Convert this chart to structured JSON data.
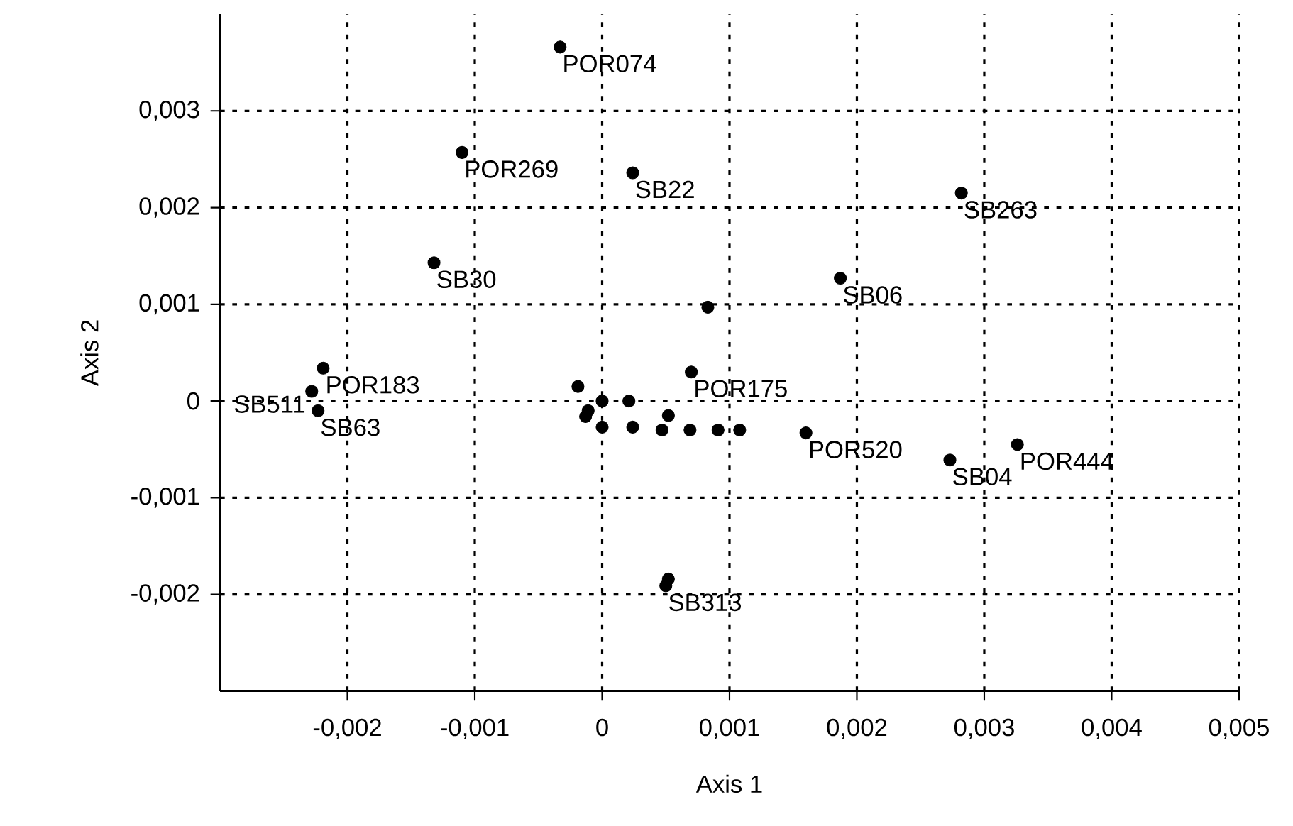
{
  "chart_data": {
    "type": "scatter",
    "xlabel": "Axis 1",
    "ylabel": "Axis 2",
    "xlim": [
      -0.003,
      0.005
    ],
    "ylim": [
      -0.003,
      0.004
    ],
    "xticks": [
      {
        "value": -0.002,
        "label": "-0,002"
      },
      {
        "value": -0.001,
        "label": "-0,001"
      },
      0,
      {
        "value": 0.001,
        "label": "0,001"
      },
      {
        "value": 0.002,
        "label": "0,002"
      },
      {
        "value": 0.003,
        "label": "0,003"
      },
      {
        "value": 0.004,
        "label": "0,004"
      },
      {
        "value": 0.005,
        "label": "0,005"
      }
    ],
    "yticks": [
      {
        "value": -0.002,
        "label": "-0,002"
      },
      {
        "value": -0.001,
        "label": "-0,001"
      },
      0,
      {
        "value": 0.001,
        "label": "0,001"
      },
      {
        "value": 0.002,
        "label": "0,002"
      },
      {
        "value": 0.003,
        "label": "0,003"
      }
    ],
    "grid": true,
    "marker": "circle",
    "series": [
      {
        "color": "#000000",
        "x": [
          -0.00033,
          -0.0011,
          0.00024,
          -0.00132,
          0.00282,
          0.00187,
          0.00083,
          0.0007,
          0.0016,
          0.00273,
          0.00326,
          -0.00219,
          -0.00228,
          -0.00223,
          0.00052,
          0.0005,
          -0.00019,
          -0.00011,
          -0.00013,
          0,
          0.00021,
          0,
          0.00024,
          0.00047,
          0.00069,
          0.00091,
          0.00108,
          0.00052
        ],
        "values": [
          0.00366,
          0.00257,
          0.00236,
          0.00143,
          0.00215,
          0.00127,
          0.00097,
          0.0003,
          -0.00033,
          -0.00061,
          -0.00045,
          0.00034,
          0.0001,
          -0.0001,
          -0.00184,
          -0.00191,
          0.00015,
          -0.0001,
          -0.00016,
          0,
          0,
          -0.00027,
          -0.00027,
          -0.0003,
          -0.0003,
          -0.0003,
          -0.0003,
          -0.00015
        ]
      }
    ],
    "annotations": [
      {
        "text": "POR074",
        "x": -0.00033,
        "y": 0.00366
      },
      {
        "text": "POR269",
        "x": -0.0011,
        "y": 0.00257
      },
      {
        "text": "SB22",
        "x": 0.00024,
        "y": 0.00236
      },
      {
        "text": "SB30",
        "x": -0.00132,
        "y": 0.00143
      },
      {
        "text": "SB263",
        "x": 0.00282,
        "y": 0.00215
      },
      {
        "text": "SB06",
        "x": 0.00187,
        "y": 0.00127
      },
      {
        "text": "POR175",
        "x": 0.0007,
        "y": 0.0003
      },
      {
        "text": "POR520",
        "x": 0.0016,
        "y": -0.00033
      },
      {
        "text": "SB04",
        "x": 0.00273,
        "y": -0.00061
      },
      {
        "text": "POR444",
        "x": 0.00326,
        "y": -0.00045
      },
      {
        "text": "POR183",
        "x": -0.00219,
        "y": 0.00034
      },
      {
        "text": "SB511",
        "x": -0.00228,
        "y": 0.0001
      },
      {
        "text": "SB63",
        "x": -0.00223,
        "y": -0.0001
      },
      {
        "text": "SB313",
        "x": 0.0005,
        "y": -0.00191
      }
    ]
  }
}
